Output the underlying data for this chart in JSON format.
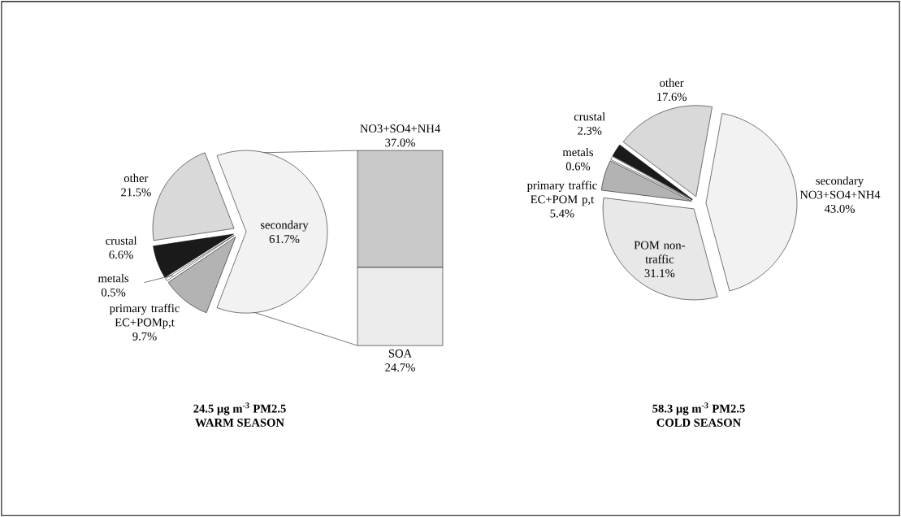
{
  "chart_data": [
    {
      "type": "pie",
      "title": "24.5 µg m$^{-3}$ PM2.5",
      "subtitle": "WARM SEASON",
      "categories": [
        "secondary",
        "other",
        "crustal",
        "metals",
        "primary traffic EC+POMp,t"
      ],
      "values": [
        61.7,
        21.5,
        6.6,
        0.5,
        9.7
      ],
      "value_labels": [
        "61.7%",
        "21.5%",
        "6.6%",
        "0.5%",
        "9.7%"
      ],
      "colors": [
        "#f2f2f2",
        "#d9d9d9",
        "#1a1a1a",
        "#ffffff",
        "#b3b3b3"
      ]
    },
    {
      "type": "bar",
      "stacked": true,
      "categories": [
        null
      ],
      "series": [
        {
          "name": "SOA",
          "color": "#ebebeb",
          "values": [
            24.7
          ],
          "value_labels": [
            "24.7%"
          ]
        },
        {
          "name": "NO3+SO4+NH4",
          "color": "#c8c8c8",
          "values": [
            37.0
          ],
          "value_labels": [
            "37.0%"
          ]
        }
      ]
    },
    {
      "type": "pie",
      "title": "58.3 µg m$^{-3}$ PM2.5",
      "subtitle": "COLD SEASON",
      "categories": [
        "secondary NO3+SO4+NH4",
        "other",
        "crustal",
        "metals",
        "primary traffic EC+POM p,t",
        "POM non-traffic"
      ],
      "values": [
        43.0,
        17.6,
        2.3,
        0.6,
        5.4,
        31.1
      ],
      "value_labels": [
        "43.0%",
        "17.6%",
        "2.3%",
        "0.6%",
        "5.4%",
        "31.1%"
      ],
      "colors": [
        "#f2f2f2",
        "#d9d9d9",
        "#1a1a1a",
        "#ffffff",
        "#b3b3b3",
        "#e8e8e8"
      ]
    }
  ]
}
